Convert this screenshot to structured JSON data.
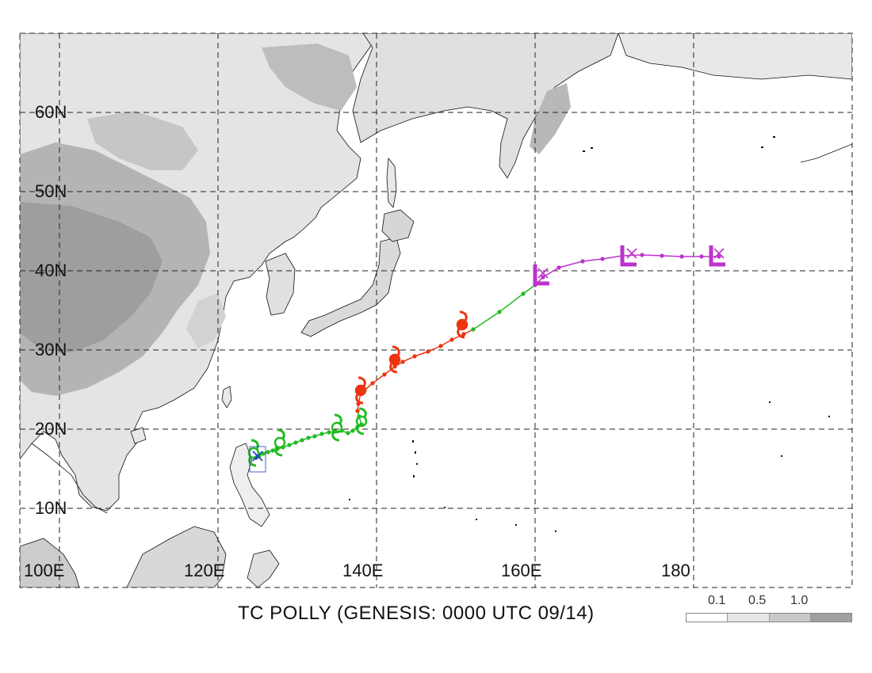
{
  "title": "TC POLLY (GENESIS: 0000 UTC 09/14)",
  "lat_labels": [
    "60N",
    "50N",
    "40N",
    "30N",
    "20N",
    "10N"
  ],
  "lon_labels": [
    "100E",
    "120E",
    "140E",
    "160E",
    "180"
  ],
  "legend": {
    "labels": [
      "0.1",
      "0.5",
      "1.0"
    ],
    "colors": [
      "#ffffff",
      "#e6e6e6",
      "#c8c8c8",
      "#a0a0a0"
    ]
  },
  "track_colors": {
    "early": "#1a3fc0",
    "tropical_storm": "#22bb22",
    "typhoon": "#ee3311",
    "extratropical": "#bb33cc"
  },
  "track": {
    "segments": [
      {
        "stage": "early",
        "points": [
          [
            124.8,
            16.4
          ],
          [
            125.2,
            16.6
          ]
        ]
      },
      {
        "stage": "tropical_storm",
        "points": [
          [
            125.2,
            16.6
          ],
          [
            125.7,
            16.9
          ],
          [
            126.3,
            17.1
          ],
          [
            126.9,
            17.3
          ],
          [
            127.5,
            17.5
          ],
          [
            128.2,
            17.7
          ],
          [
            129.0,
            18.0
          ],
          [
            129.8,
            18.3
          ],
          [
            130.6,
            18.6
          ],
          [
            131.4,
            18.9
          ],
          [
            132.2,
            19.1
          ],
          [
            133.1,
            19.4
          ],
          [
            134.0,
            19.6
          ],
          [
            134.8,
            19.7
          ],
          [
            135.6,
            19.8
          ],
          [
            136.4,
            19.5
          ],
          [
            137.0,
            19.8
          ],
          [
            137.6,
            20.3
          ],
          [
            138.1,
            20.6
          ],
          [
            137.8,
            21.6
          ],
          [
            137.6,
            22.3
          ]
        ]
      },
      {
        "stage": "typhoon",
        "points": [
          [
            137.6,
            22.3
          ],
          [
            137.7,
            23.2
          ],
          [
            138.0,
            24.5
          ],
          [
            139.5,
            25.8
          ],
          [
            141.0,
            26.9
          ],
          [
            142.3,
            27.9
          ],
          [
            143.3,
            28.5
          ],
          [
            144.8,
            29.2
          ],
          [
            146.5,
            29.8
          ],
          [
            148.1,
            30.5
          ],
          [
            149.5,
            31.3
          ],
          [
            151.0,
            32.0
          ],
          [
            152.2,
            32.6
          ]
        ]
      },
      {
        "stage": "tropical_storm",
        "points": [
          [
            152.2,
            32.6
          ],
          [
            155.5,
            34.8
          ],
          [
            158.5,
            37.1
          ],
          [
            160.0,
            38.2
          ]
        ]
      },
      {
        "stage": "extratropical",
        "points": [
          [
            160.0,
            38.2
          ],
          [
            161.0,
            39.2
          ],
          [
            163.0,
            40.4
          ],
          [
            166.0,
            41.2
          ],
          [
            168.5,
            41.5
          ],
          [
            171.0,
            41.9
          ],
          [
            173.5,
            42.0
          ],
          [
            176.0,
            41.9
          ],
          [
            178.5,
            41.8
          ],
          [
            181.0,
            41.8
          ],
          [
            183.2,
            41.8
          ]
        ]
      }
    ],
    "symbols": [
      {
        "kind": "ts-symbol",
        "lon": 124.5,
        "lat": 17.0
      },
      {
        "kind": "ts-symbol",
        "lon": 127.8,
        "lat": 18.3
      },
      {
        "kind": "ts-symbol",
        "lon": 135.0,
        "lat": 20.2
      },
      {
        "kind": "ts-symbol",
        "lon": 138.1,
        "lat": 21.0
      },
      {
        "kind": "ty-symbol",
        "lon": 138.0,
        "lat": 24.9
      },
      {
        "kind": "ty-symbol",
        "lon": 142.3,
        "lat": 28.8
      },
      {
        "kind": "ty-symbol",
        "lon": 150.8,
        "lat": 33.2
      },
      {
        "kind": "low-symbol",
        "lon": 160.8,
        "lat": 39.6
      },
      {
        "kind": "low-symbol",
        "lon": 171.8,
        "lat": 42.0
      },
      {
        "kind": "low-symbol",
        "lon": 183.0,
        "lat": 42.0
      }
    ],
    "x_marks": [
      {
        "lon": 125.0,
        "lat": 16.6
      },
      {
        "lon": 161.0,
        "lat": 39.7
      },
      {
        "lon": 172.2,
        "lat": 42.2
      },
      {
        "lon": 183.2,
        "lat": 42.2
      }
    ]
  }
}
